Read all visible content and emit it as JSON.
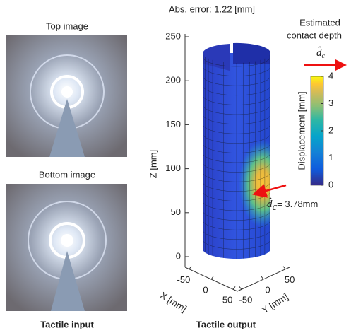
{
  "left": {
    "top_caption": "Top image",
    "bottom_caption": "Bottom image",
    "caption": "Tactile input"
  },
  "right": {
    "title": "Abs. error: 1.22 [mm]",
    "caption": "Tactile output",
    "z_label": "Z [mm]",
    "x_label": "X [mm]",
    "y_label": "Y [mm]",
    "zlim": [
      0,
      250
    ],
    "zticks": [
      0,
      50,
      100,
      150,
      200,
      250
    ],
    "xlim": [
      -50,
      50
    ],
    "xticks": [
      -50,
      0,
      50
    ],
    "ylim": [
      -50,
      50
    ],
    "yticks": [
      -50,
      0,
      50
    ],
    "colorbar": {
      "label": "Displacement [mm]",
      "clim": [
        0,
        4
      ],
      "ticks": [
        0,
        1,
        2,
        3,
        4
      ]
    },
    "legend": {
      "line1": "Estimated",
      "line2": "contact depth",
      "symbol": "d̂",
      "sub": "c"
    },
    "annotation": "= 3.78mm"
  }
}
